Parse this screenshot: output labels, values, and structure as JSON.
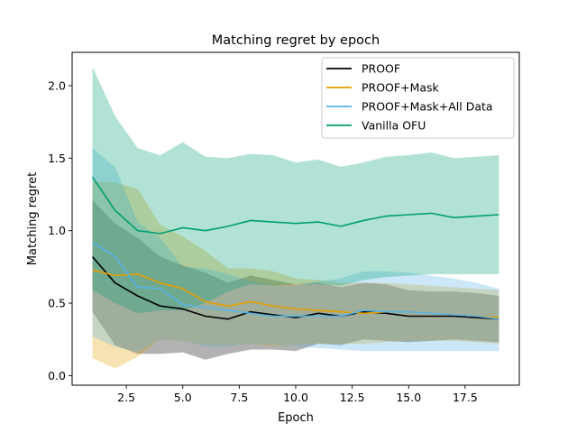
{
  "chart_data": {
    "type": "line",
    "title": "Matching regret by epoch",
    "xlabel": "Epoch",
    "ylabel": "Matching regret",
    "xlim": [
      0.1,
      19.9
    ],
    "ylim": [
      -0.066,
      2.23
    ],
    "xticks": [
      2.5,
      5.0,
      7.5,
      10.0,
      12.5,
      15.0,
      17.5
    ],
    "xtick_labels": [
      "2.5",
      "5.0",
      "7.5",
      "10.0",
      "12.5",
      "15.0",
      "17.5"
    ],
    "yticks": [
      0.0,
      0.5,
      1.0,
      1.5,
      2.0
    ],
    "ytick_labels": [
      "0.0",
      "0.5",
      "1.0",
      "1.5",
      "2.0"
    ],
    "legend_position": "top-right",
    "grid": false,
    "x": [
      1,
      2,
      3,
      4,
      5,
      6,
      7,
      8,
      9,
      10,
      11,
      12,
      13,
      14,
      15,
      16,
      17,
      18,
      19
    ],
    "series": [
      {
        "name": "PROOF",
        "color": "#000000",
        "band_opacity": 0.3,
        "values": [
          0.82,
          0.64,
          0.55,
          0.48,
          0.46,
          0.41,
          0.39,
          0.44,
          0.42,
          0.4,
          0.43,
          0.41,
          0.44,
          0.43,
          0.41,
          0.41,
          0.41,
          0.4,
          0.39
        ],
        "lower": [
          0.44,
          0.21,
          0.15,
          0.15,
          0.16,
          0.11,
          0.15,
          0.18,
          0.18,
          0.17,
          0.22,
          0.21,
          0.25,
          0.24,
          0.23,
          0.24,
          0.25,
          0.24,
          0.23
        ],
        "upper": [
          1.21,
          1.05,
          0.95,
          0.82,
          0.76,
          0.71,
          0.64,
          0.69,
          0.66,
          0.63,
          0.64,
          0.61,
          0.64,
          0.63,
          0.59,
          0.58,
          0.58,
          0.57,
          0.55
        ]
      },
      {
        "name": "PROOF+Mask",
        "color": "#e69f00",
        "band_opacity": 0.3,
        "values": [
          0.73,
          0.69,
          0.7,
          0.64,
          0.6,
          0.51,
          0.48,
          0.51,
          0.48,
          0.46,
          0.45,
          0.44,
          0.43,
          0.44,
          0.44,
          0.43,
          0.42,
          0.41,
          0.4
        ],
        "lower": [
          0.12,
          0.05,
          0.13,
          0.25,
          0.24,
          0.21,
          0.21,
          0.22,
          0.2,
          0.21,
          0.22,
          0.22,
          0.22,
          0.23,
          0.24,
          0.24,
          0.24,
          0.23,
          0.22
        ],
        "upper": [
          1.34,
          1.33,
          1.29,
          1.04,
          0.96,
          0.86,
          0.74,
          0.74,
          0.72,
          0.67,
          0.66,
          0.64,
          0.64,
          0.64,
          0.63,
          0.62,
          0.61,
          0.6,
          0.59
        ]
      },
      {
        "name": "PROOF+Mask+All Data",
        "color": "#56b4e9",
        "band_opacity": 0.3,
        "values": [
          0.92,
          0.82,
          0.61,
          0.6,
          0.49,
          0.47,
          0.45,
          0.43,
          0.41,
          0.41,
          0.41,
          0.41,
          0.45,
          0.44,
          0.44,
          0.43,
          0.42,
          0.41,
          0.39
        ],
        "lower": [
          0.27,
          0.2,
          0.16,
          0.25,
          0.24,
          0.2,
          0.2,
          0.22,
          0.21,
          0.2,
          0.19,
          0.18,
          0.17,
          0.17,
          0.17,
          0.17,
          0.17,
          0.17,
          0.17
        ],
        "upper": [
          1.57,
          1.44,
          1.06,
          0.95,
          0.75,
          0.74,
          0.7,
          0.65,
          0.62,
          0.62,
          0.65,
          0.67,
          0.72,
          0.72,
          0.71,
          0.69,
          0.67,
          0.64,
          0.6
        ]
      },
      {
        "name": "Vanilla OFU",
        "color": "#009e73",
        "band_opacity": 0.3,
        "values": [
          1.37,
          1.14,
          1.0,
          0.98,
          1.02,
          1.0,
          1.03,
          1.07,
          1.06,
          1.05,
          1.06,
          1.03,
          1.07,
          1.1,
          1.11,
          1.12,
          1.09,
          1.1,
          1.11
        ],
        "lower": [
          0.59,
          0.5,
          0.43,
          0.45,
          0.45,
          0.5,
          0.58,
          0.63,
          0.62,
          0.63,
          0.63,
          0.62,
          0.66,
          0.68,
          0.69,
          0.7,
          0.7,
          0.7,
          0.7
        ],
        "upper": [
          2.13,
          1.79,
          1.57,
          1.52,
          1.61,
          1.51,
          1.5,
          1.53,
          1.52,
          1.47,
          1.49,
          1.44,
          1.47,
          1.51,
          1.52,
          1.54,
          1.5,
          1.51,
          1.52
        ]
      }
    ]
  }
}
